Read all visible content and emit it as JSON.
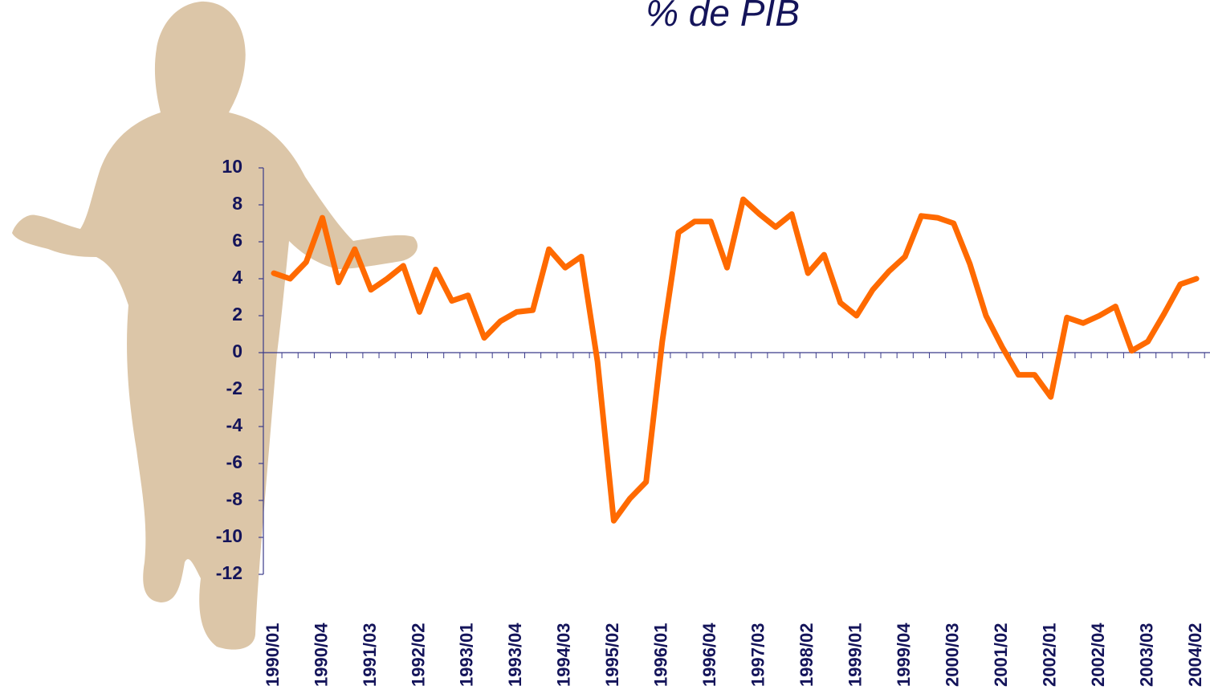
{
  "chart_data": {
    "type": "line",
    "title": "% de PIB",
    "categories": [
      "1990/01",
      null,
      null,
      "1990/04",
      null,
      null,
      "1991/03",
      null,
      null,
      "1992/02",
      null,
      null,
      "1993/01",
      null,
      null,
      "1993/04",
      null,
      null,
      "1994/03",
      null,
      null,
      "1995/02",
      null,
      null,
      "1996/01",
      null,
      null,
      "1996/04",
      null,
      null,
      "1997/03",
      null,
      null,
      "1998/02",
      null,
      null,
      "1999/01",
      null,
      null,
      "1999/04",
      null,
      null,
      "2000/03",
      null,
      null,
      "2001/02",
      null,
      null,
      "2002/01",
      null,
      null,
      "2002/04",
      null,
      null,
      "2003/03",
      null,
      null,
      "2004/02"
    ],
    "values": [
      4.3,
      4.0,
      4.9,
      7.3,
      3.8,
      5.6,
      3.4,
      4.0,
      4.7,
      2.2,
      4.5,
      2.8,
      3.1,
      0.8,
      1.7,
      2.2,
      2.3,
      5.6,
      4.6,
      5.2,
      -0.5,
      -9.1,
      -7.9,
      -7.0,
      0.6,
      6.5,
      7.1,
      7.1,
      4.6,
      8.3,
      7.5,
      6.8,
      7.5,
      4.3,
      5.3,
      2.7,
      2.0,
      3.4,
      4.4,
      5.2,
      7.4,
      7.3,
      7.0,
      4.8,
      2.0,
      0.3,
      -1.2,
      -1.2,
      -2.4,
      1.9,
      1.6,
      2.0,
      2.5,
      0.1,
      0.6,
      2.1,
      3.7,
      4.0
    ],
    "color": "#ff6a00",
    "ylim": [
      -12,
      10
    ],
    "yticks": [
      10,
      8,
      6,
      4,
      2,
      0,
      -2,
      -4,
      -6,
      -8,
      -10,
      -12
    ],
    "grid": false
  }
}
